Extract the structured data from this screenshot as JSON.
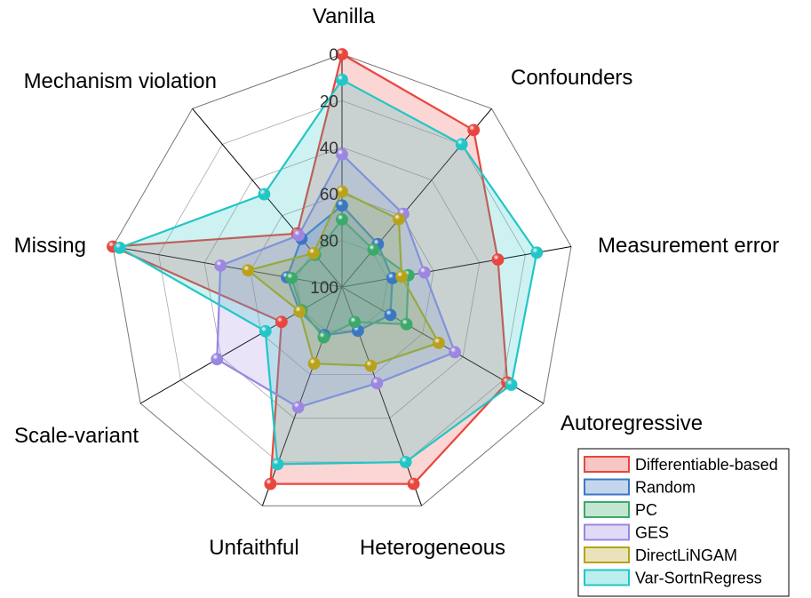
{
  "chart_data": {
    "type": "radar",
    "categories": [
      "Vanilla",
      "Confounders",
      "Measurement error",
      "Autoregressive",
      "Heterogeneous",
      "Unfaithful",
      "Scale-variant",
      "Missing",
      "Mechanism violation"
    ],
    "radial_ticks": [
      "0",
      "20",
      "40",
      "60",
      "80",
      "100"
    ],
    "rlim": [
      0,
      100
    ],
    "radial_axis_reversed": true,
    "grid": true,
    "legend_position": "bottom-right",
    "series": [
      {
        "name": "Differentiable-based",
        "color": "#e8463e",
        "values": [
          0,
          12,
          32,
          18,
          10,
          10,
          70,
          0,
          70
        ]
      },
      {
        "name": "Random",
        "color": "#3a78c2",
        "values": [
          65,
          76,
          78,
          76,
          80,
          78,
          79,
          76,
          73
        ]
      },
      {
        "name": "PC",
        "color": "#3aaa6a",
        "values": [
          71,
          79,
          71,
          68,
          84,
          77,
          80,
          78,
          82
        ]
      },
      {
        "name": "GES",
        "color": "#9b86e0",
        "values": [
          43,
          59,
          64,
          44,
          56,
          45,
          38,
          47,
          71
        ]
      },
      {
        "name": "DirectLiNGAM",
        "color": "#b8a21a",
        "values": [
          59,
          62,
          74,
          52,
          64,
          65,
          79,
          59,
          81
        ]
      },
      {
        "name": "Var-SortnRegress",
        "color": "#22c6c6",
        "values": [
          11,
          20,
          15,
          16,
          20,
          19,
          62,
          3,
          48
        ]
      }
    ]
  }
}
